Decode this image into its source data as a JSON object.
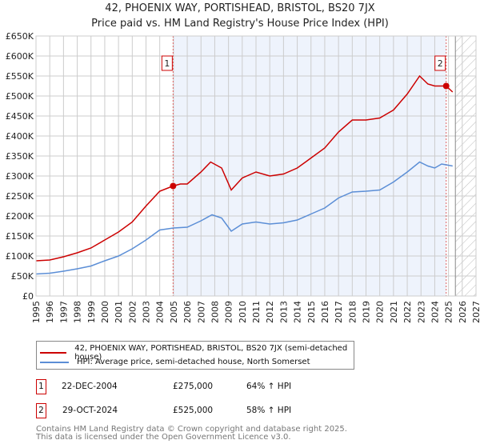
{
  "title": "42, PHOENIX WAY, PORTISHEAD, BRISTOL, BS20 7JX",
  "subtitle": "Price paid vs. HM Land Registry's House Price Index (HPI)",
  "chart_data": {
    "type": "line",
    "title": "42, PHOENIX WAY, PORTISHEAD, BRISTOL, BS20 7JX",
    "subtitle": "Price paid vs. HM Land Registry's House Price Index (HPI)",
    "xlim": [
      1995,
      2027
    ],
    "ylim": [
      0,
      650000
    ],
    "x_ticks": [
      "1995",
      "1996",
      "1997",
      "1998",
      "1999",
      "2000",
      "2001",
      "2002",
      "2003",
      "2004",
      "2005",
      "2006",
      "2007",
      "2008",
      "2009",
      "2010",
      "2011",
      "2012",
      "2013",
      "2014",
      "2015",
      "2016",
      "2017",
      "2018",
      "2019",
      "2020",
      "2021",
      "2022",
      "2023",
      "2024",
      "2025",
      "2026",
      "2027"
    ],
    "y_ticks": [
      "£0",
      "£50K",
      "£100K",
      "£150K",
      "£200K",
      "£250K",
      "£300K",
      "£350K",
      "£400K",
      "£450K",
      "£500K",
      "£550K",
      "£600K",
      "£650K"
    ],
    "grid": true,
    "colors": {
      "property": "#cc0000",
      "hpi": "#5b8ed6",
      "shade": "#eef3fc"
    },
    "series": [
      {
        "name": "42, PHOENIX WAY, PORTISHEAD, BRISTOL, BS20 7JX (semi-detached house)",
        "x": [
          1995,
          1996,
          1997,
          1998,
          1999,
          2000,
          2001,
          2002,
          2003,
          2004,
          2004.97,
          2005.5,
          2006,
          2007,
          2007.7,
          2008.5,
          2009.2,
          2010,
          2011,
          2012,
          2013,
          2014,
          2015,
          2016,
          2017,
          2018,
          2019,
          2020,
          2020.5,
          2021,
          2022,
          2022.9,
          2023.5,
          2024,
          2024.5,
          2024.83,
          2025.3
        ],
        "values": [
          88000,
          90000,
          98000,
          108000,
          120000,
          140000,
          160000,
          185000,
          225000,
          262000,
          275000,
          280000,
          280000,
          310000,
          335000,
          320000,
          265000,
          295000,
          310000,
          300000,
          305000,
          320000,
          345000,
          370000,
          410000,
          440000,
          440000,
          445000,
          455000,
          465000,
          505000,
          550000,
          530000,
          525000,
          525000,
          525000,
          510000
        ]
      },
      {
        "name": "HPI: Average price, semi-detached house, North Somerset",
        "x": [
          1995,
          1996,
          1997,
          1998,
          1999,
          2000,
          2001,
          2002,
          2003,
          2004,
          2005,
          2006,
          2007,
          2007.8,
          2008.5,
          2009.2,
          2010,
          2011,
          2012,
          2013,
          2014,
          2015,
          2016,
          2017,
          2018,
          2019,
          2020,
          2021,
          2022,
          2022.9,
          2023.5,
          2024,
          2024.5,
          2025.3
        ],
        "values": [
          55000,
          57000,
          62000,
          68000,
          75000,
          88000,
          100000,
          118000,
          140000,
          165000,
          170000,
          172000,
          188000,
          203000,
          195000,
          162000,
          180000,
          185000,
          180000,
          183000,
          190000,
          205000,
          220000,
          245000,
          260000,
          262000,
          265000,
          285000,
          310000,
          335000,
          325000,
          320000,
          330000,
          325000
        ]
      }
    ],
    "annotations": [
      {
        "label": "1",
        "x": 2004.97,
        "value": 275000
      },
      {
        "label": "2",
        "x": 2024.83,
        "value": 525000
      }
    ]
  },
  "legend": {
    "property": "42, PHOENIX WAY, PORTISHEAD, BRISTOL, BS20 7JX (semi-detached house)",
    "hpi": "HPI: Average price, semi-detached house, North Somerset"
  },
  "transactions": [
    {
      "num": "1",
      "date": "22-DEC-2004",
      "price": "£275,000",
      "hpi": "64% ↑ HPI"
    },
    {
      "num": "2",
      "date": "29-OCT-2024",
      "price": "£525,000",
      "hpi": "58% ↑ HPI"
    }
  ],
  "footer": {
    "line1": "Contains HM Land Registry data © Crown copyright and database right 2025.",
    "line2": "This data is licensed under the Open Government Licence v3.0."
  }
}
